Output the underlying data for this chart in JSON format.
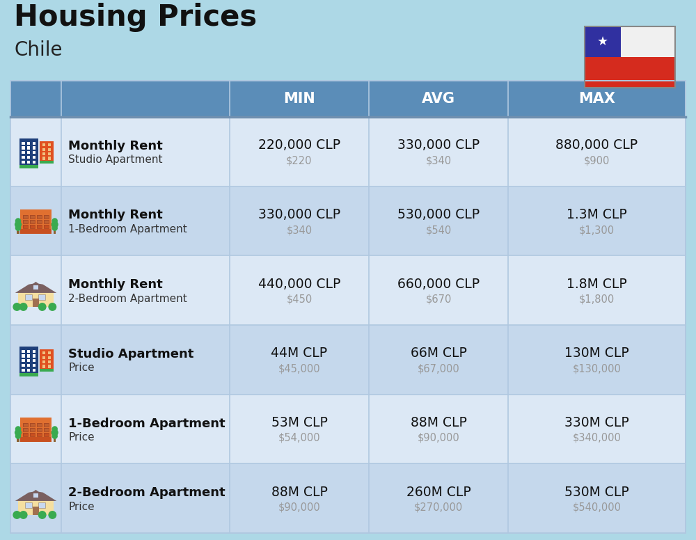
{
  "title": "Housing Prices",
  "subtitle": "Chile",
  "background_color": "#add8e6",
  "header_bg_color": "#5b8db8",
  "header_text_color": "#ffffff",
  "row_bg_color_1": "#dce8f5",
  "row_bg_color_2": "#c5d8ec",
  "col_header_labels": [
    "MIN",
    "AVG",
    "MAX"
  ],
  "rows": [
    {
      "label_bold": "Monthly Rent",
      "label_sub": "Studio Apartment",
      "icon_type": "city_blue",
      "min_clp": "220,000 CLP",
      "min_usd": "$220",
      "avg_clp": "330,000 CLP",
      "avg_usd": "$340",
      "max_clp": "880,000 CLP",
      "max_usd": "$900"
    },
    {
      "label_bold": "Monthly Rent",
      "label_sub": "1-Bedroom Apartment",
      "icon_type": "apt_orange",
      "min_clp": "330,000 CLP",
      "min_usd": "$340",
      "avg_clp": "530,000 CLP",
      "avg_usd": "$540",
      "max_clp": "1.3M CLP",
      "max_usd": "$1,300"
    },
    {
      "label_bold": "Monthly Rent",
      "label_sub": "2-Bedroom Apartment",
      "icon_type": "house_fancy",
      "min_clp": "440,000 CLP",
      "min_usd": "$450",
      "avg_clp": "660,000 CLP",
      "avg_usd": "$670",
      "max_clp": "1.8M CLP",
      "max_usd": "$1,800"
    },
    {
      "label_bold": "Studio Apartment",
      "label_sub": "Price",
      "icon_type": "city_blue",
      "min_clp": "44M CLP",
      "min_usd": "$45,000",
      "avg_clp": "66M CLP",
      "avg_usd": "$67,000",
      "max_clp": "130M CLP",
      "max_usd": "$130,000"
    },
    {
      "label_bold": "1-Bedroom Apartment",
      "label_sub": "Price",
      "icon_type": "apt_orange",
      "min_clp": "53M CLP",
      "min_usd": "$54,000",
      "avg_clp": "88M CLP",
      "avg_usd": "$90,000",
      "max_clp": "330M CLP",
      "max_usd": "$340,000"
    },
    {
      "label_bold": "2-Bedroom Apartment",
      "label_sub": "Price",
      "icon_type": "house_fancy",
      "min_clp": "88M CLP",
      "min_usd": "$90,000",
      "avg_clp": "260M CLP",
      "avg_usd": "$270,000",
      "max_clp": "530M CLP",
      "max_usd": "$540,000"
    }
  ]
}
